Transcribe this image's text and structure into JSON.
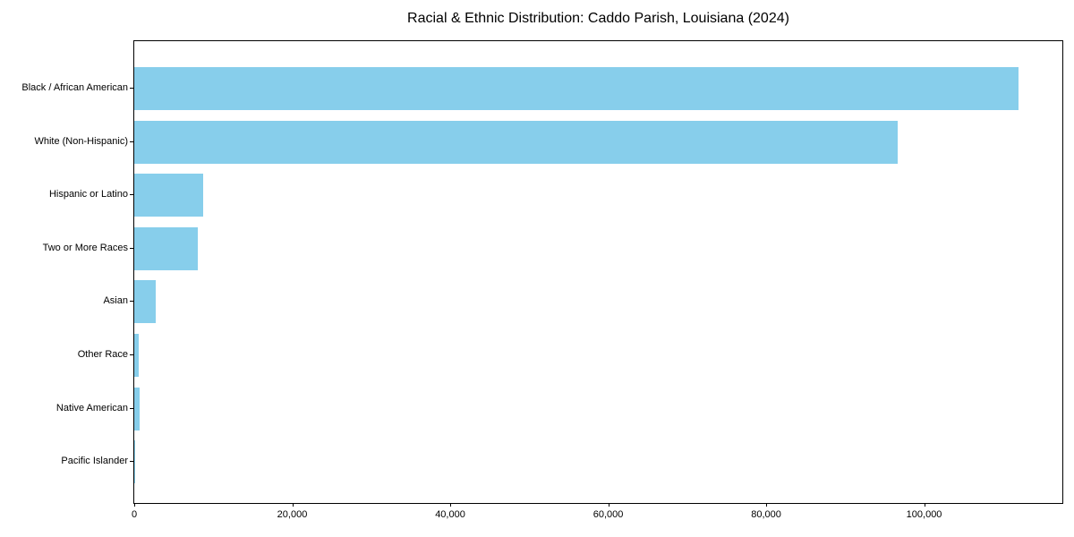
{
  "chart_data": {
    "type": "bar",
    "orientation": "horizontal",
    "title": "Racial & Ethnic Distribution: Caddo Parish, Louisiana (2024)",
    "categories": [
      "Black / African American",
      "White (Non-Hispanic)",
      "Hispanic or Latino",
      "Two or More Races",
      "Asian",
      "Other Race",
      "Native American",
      "Pacific Islander"
    ],
    "values": [
      111900,
      96700,
      8700,
      8100,
      2700,
      560,
      640,
      50
    ],
    "xlabel": "",
    "ylabel": "",
    "xlim": [
      0,
      117500
    ],
    "xticks": {
      "values": [
        0,
        20000,
        40000,
        60000,
        80000,
        100000
      ],
      "labels": [
        "0",
        "20,000",
        "40,000",
        "60,000",
        "80,000",
        "100,000"
      ]
    },
    "grid": false,
    "legend": "none",
    "bar_color": "#87CEEB",
    "spine_color": "#000000",
    "text_color": "#000000",
    "background_color": "#FFFFFF"
  }
}
